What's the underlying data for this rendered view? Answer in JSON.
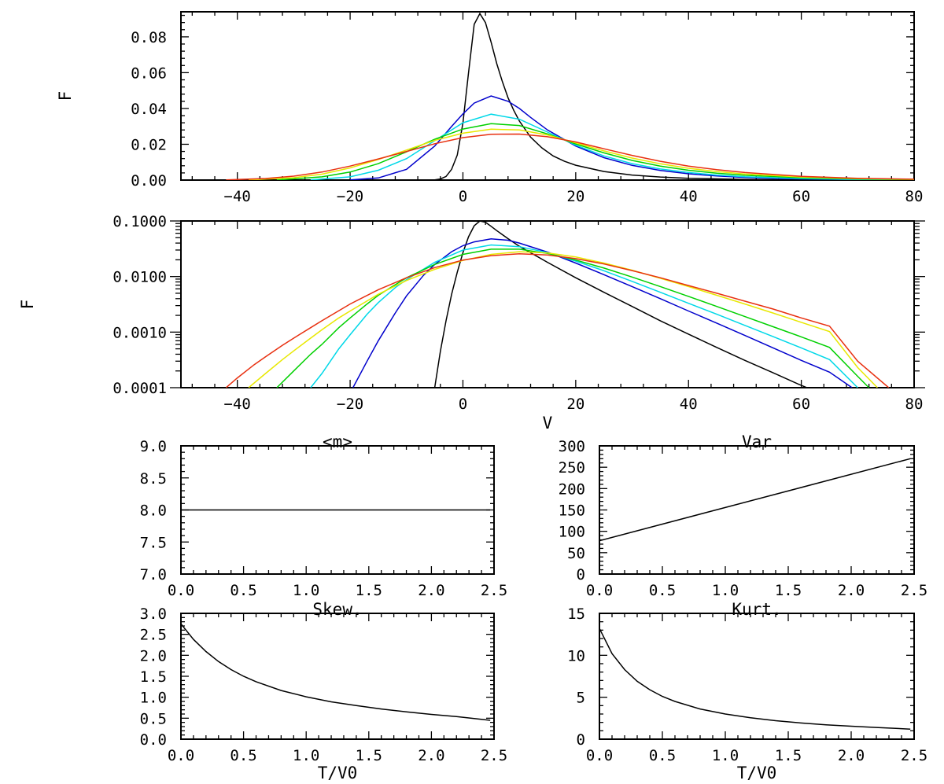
{
  "chart_data": [
    {
      "id": "top",
      "type": "line",
      "ylabel": "F",
      "xlabel": "",
      "xlim": [
        -50,
        80
      ],
      "ylim": [
        0,
        0.094
      ],
      "xticks": [
        -40,
        -20,
        0,
        20,
        40,
        60,
        80
      ],
      "xtick_labels": [
        "−40",
        "−20",
        "0",
        "20",
        "40",
        "60",
        "80"
      ],
      "yticks": [
        0,
        0.02,
        0.04,
        0.06,
        0.08
      ],
      "ytick_labels": [
        "0.00",
        "0.02",
        "0.04",
        "0.06",
        "0.08"
      ],
      "log_y": false,
      "series": [
        {
          "color": "#000000",
          "x": [
            -6,
            -5,
            -4,
            -3,
            -2,
            -1,
            0,
            1,
            2,
            3,
            4,
            5,
            6,
            7,
            8,
            9,
            10,
            12,
            14,
            16,
            18,
            20,
            25,
            30,
            35,
            40,
            50,
            60,
            70,
            80
          ],
          "y": [
            0,
            0.0001,
            0.0006,
            0.002,
            0.006,
            0.014,
            0.032,
            0.06,
            0.087,
            0.093,
            0.088,
            0.077,
            0.065,
            0.055,
            0.046,
            0.039,
            0.033,
            0.024,
            0.018,
            0.0135,
            0.0105,
            0.0083,
            0.0048,
            0.0028,
            0.0017,
            0.001,
            0.0004,
            0.00015,
            5e-05,
            2e-05
          ]
        },
        {
          "color": "#0000cc",
          "x": [
            -20,
            -15,
            -10,
            -5,
            -2,
            0,
            2,
            5,
            8,
            10,
            12,
            15,
            20,
            25,
            30,
            35,
            40,
            45,
            50,
            55,
            60,
            70,
            80
          ],
          "y": [
            0.0001,
            0.0012,
            0.006,
            0.019,
            0.03,
            0.037,
            0.043,
            0.047,
            0.044,
            0.04,
            0.035,
            0.028,
            0.019,
            0.0125,
            0.0082,
            0.0054,
            0.0035,
            0.0023,
            0.0015,
            0.001,
            0.00065,
            0.00028,
            0.00012
          ]
        },
        {
          "color": "#00d8e8",
          "x": [
            -27,
            -20,
            -15,
            -10,
            -5,
            0,
            5,
            10,
            15,
            20,
            25,
            30,
            35,
            40,
            45,
            50,
            60,
            70,
            80
          ],
          "y": [
            0.0001,
            0.0018,
            0.0055,
            0.012,
            0.022,
            0.032,
            0.0368,
            0.034,
            0.0268,
            0.0195,
            0.0135,
            0.0092,
            0.0062,
            0.0042,
            0.0028,
            0.0019,
            0.00085,
            0.00037,
            0.00016
          ]
        },
        {
          "color": "#00d000",
          "x": [
            -33,
            -25,
            -20,
            -15,
            -10,
            -5,
            0,
            5,
            10,
            15,
            20,
            25,
            30,
            35,
            40,
            45,
            50,
            60,
            70,
            80
          ],
          "y": [
            0.0001,
            0.0018,
            0.0045,
            0.0092,
            0.0158,
            0.0228,
            0.0285,
            0.0315,
            0.0305,
            0.0258,
            0.0202,
            0.0152,
            0.011,
            0.0078,
            0.0055,
            0.0038,
            0.0027,
            0.0013,
            0.0006,
            0.00028
          ]
        },
        {
          "color": "#e8e800",
          "x": [
            -38,
            -30,
            -25,
            -20,
            -15,
            -10,
            -5,
            0,
            5,
            10,
            15,
            20,
            25,
            30,
            35,
            40,
            45,
            50,
            60,
            70,
            80
          ],
          "y": [
            0.0001,
            0.0013,
            0.0033,
            0.0068,
            0.0115,
            0.0168,
            0.0222,
            0.0262,
            0.0284,
            0.028,
            0.0252,
            0.0208,
            0.0163,
            0.0123,
            0.0091,
            0.0066,
            0.0048,
            0.0034,
            0.0017,
            0.00085,
            0.0004
          ]
        },
        {
          "color": "#e83010",
          "x": [
            -42,
            -35,
            -30,
            -25,
            -20,
            -15,
            -10,
            -5,
            0,
            5,
            10,
            15,
            20,
            25,
            30,
            35,
            40,
            45,
            50,
            60,
            70,
            80
          ],
          "y": [
            0.0001,
            0.0009,
            0.0022,
            0.0045,
            0.0078,
            0.0118,
            0.016,
            0.0203,
            0.0237,
            0.0256,
            0.0257,
            0.0242,
            0.0213,
            0.0175,
            0.0138,
            0.0105,
            0.0078,
            0.0058,
            0.0042,
            0.0021,
            0.001,
            0.0005
          ]
        }
      ]
    },
    {
      "id": "middle",
      "type": "line",
      "ylabel": "F",
      "xlabel": "V",
      "xlim": [
        -50,
        80
      ],
      "ylim": [
        0.0001,
        0.1
      ],
      "log_y": true,
      "xticks": [
        -40,
        -20,
        0,
        20,
        40,
        60,
        80
      ],
      "xtick_labels": [
        "−40",
        "−20",
        "0",
        "20",
        "40",
        "60",
        "80"
      ],
      "yticks": [
        0.0001,
        0.001,
        0.01,
        0.1
      ],
      "ytick_labels": [
        "0.0001",
        "0.0010",
        "0.0100",
        "0.1000"
      ],
      "series": [
        {
          "color": "#000000",
          "x": [
            -5,
            -4,
            -3,
            -2,
            -1,
            0,
            1,
            2,
            3,
            4,
            5,
            6,
            8,
            10,
            15,
            20,
            25,
            30,
            35,
            40,
            45,
            50,
            55,
            60,
            65,
            68
          ],
          "y": [
            0.0001,
            0.00045,
            0.0016,
            0.0048,
            0.012,
            0.027,
            0.052,
            0.082,
            0.1,
            0.095,
            0.08,
            0.067,
            0.048,
            0.035,
            0.018,
            0.0095,
            0.0052,
            0.0029,
            0.0016,
            0.00092,
            0.00053,
            0.00031,
            0.000185,
            0.00011,
            6.8e-05,
            0.0001
          ]
        },
        {
          "color": "#0000cc",
          "x": [
            -19.5,
            -17,
            -15,
            -12,
            -10,
            -7,
            -5,
            -2,
            0,
            2,
            5,
            8,
            10,
            15,
            20,
            25,
            30,
            35,
            40,
            45,
            50,
            55,
            60,
            65,
            69
          ],
          "y": [
            0.0001,
            0.0003,
            0.0007,
            0.0022,
            0.0045,
            0.0105,
            0.0165,
            0.028,
            0.036,
            0.042,
            0.0475,
            0.045,
            0.04,
            0.0275,
            0.0175,
            0.0108,
            0.0066,
            0.004,
            0.0024,
            0.00145,
            0.00087,
            0.00052,
            0.00031,
            0.00019,
            0.0001
          ]
        },
        {
          "color": "#00d8e8",
          "x": [
            -27,
            -25,
            -22,
            -20,
            -17,
            -15,
            -12,
            -10,
            -5,
            0,
            5,
            10,
            15,
            20,
            25,
            30,
            35,
            40,
            45,
            50,
            55,
            60,
            65,
            70
          ],
          "y": [
            0.0001,
            0.00018,
            0.0005,
            0.0009,
            0.0021,
            0.0034,
            0.0063,
            0.0088,
            0.018,
            0.03,
            0.037,
            0.0345,
            0.027,
            0.019,
            0.0127,
            0.0082,
            0.0052,
            0.0033,
            0.0021,
            0.00132,
            0.00083,
            0.00052,
            0.00032,
            0.0001
          ]
        },
        {
          "color": "#00d000",
          "x": [
            -33,
            -30,
            -27,
            -25,
            -22,
            -20,
            -17,
            -15,
            -10,
            -5,
            0,
            5,
            10,
            15,
            20,
            25,
            30,
            35,
            40,
            45,
            50,
            55,
            60,
            65,
            70,
            72
          ],
          "y": [
            0.0001,
            0.0002,
            0.0004,
            0.0006,
            0.0012,
            0.0018,
            0.0032,
            0.0046,
            0.0095,
            0.0165,
            0.025,
            0.031,
            0.031,
            0.026,
            0.0198,
            0.0142,
            0.0098,
            0.0066,
            0.0044,
            0.0029,
            0.0019,
            0.00125,
            0.00082,
            0.00053,
            0.00016,
            0.0001
          ]
        },
        {
          "color": "#e8e800",
          "x": [
            -38,
            -35,
            -32,
            -30,
            -27,
            -25,
            -22,
            -20,
            -15,
            -10,
            -5,
            0,
            5,
            10,
            15,
            20,
            25,
            30,
            35,
            40,
            45,
            50,
            55,
            60,
            65,
            70,
            73.5
          ],
          "y": [
            0.0001,
            0.00018,
            0.00032,
            0.00046,
            0.00078,
            0.0011,
            0.0018,
            0.0024,
            0.0048,
            0.0085,
            0.0135,
            0.0195,
            0.025,
            0.028,
            0.0266,
            0.0225,
            0.0175,
            0.013,
            0.0093,
            0.0066,
            0.0046,
            0.0032,
            0.0022,
            0.0015,
            0.00102,
            0.00023,
            0.0001
          ]
        },
        {
          "color": "#e83010",
          "x": [
            -42,
            -40,
            -37,
            -35,
            -32,
            -30,
            -27,
            -25,
            -20,
            -15,
            -10,
            -5,
            0,
            5,
            10,
            15,
            20,
            25,
            30,
            35,
            40,
            45,
            50,
            55,
            60,
            65,
            70,
            75.5
          ],
          "y": [
            0.0001,
            0.00015,
            0.00026,
            0.00036,
            0.00058,
            0.00078,
            0.0012,
            0.0016,
            0.0032,
            0.0058,
            0.0095,
            0.0145,
            0.0198,
            0.0238,
            0.0256,
            0.0245,
            0.021,
            0.0168,
            0.0128,
            0.0095,
            0.0069,
            0.005,
            0.0036,
            0.0026,
            0.0018,
            0.00128,
            0.0003,
            0.0001
          ]
        }
      ]
    },
    {
      "id": "mean",
      "type": "line",
      "title": "<m>",
      "xlim": [
        0,
        2.5
      ],
      "ylim": [
        7.0,
        9.0
      ],
      "xticks": [
        0,
        0.5,
        1.0,
        1.5,
        2.0,
        2.5
      ],
      "xtick_labels": [
        "0.0",
        "0.5",
        "1.0",
        "1.5",
        "2.0",
        "2.5"
      ],
      "yticks": [
        7.0,
        7.5,
        8.0,
        8.5,
        9.0
      ],
      "ytick_labels": [
        "7.0",
        "7.5",
        "8.0",
        "8.5",
        "9.0"
      ],
      "series": [
        {
          "color": "#000000",
          "x": [
            0,
            2.47
          ],
          "y": [
            8.0,
            8.0
          ]
        }
      ]
    },
    {
      "id": "var",
      "type": "line",
      "title": "Var",
      "xlim": [
        0,
        2.5
      ],
      "ylim": [
        0,
        300
      ],
      "xticks": [
        0,
        0.5,
        1.0,
        1.5,
        2.0,
        2.5
      ],
      "xtick_labels": [
        "0.0",
        "0.5",
        "1.0",
        "1.5",
        "2.0",
        "2.5"
      ],
      "yticks": [
        0,
        50,
        100,
        150,
        200,
        250,
        300
      ],
      "ytick_labels": [
        "0",
        "50",
        "100",
        "150",
        "200",
        "250",
        "300"
      ],
      "series": [
        {
          "color": "#000000",
          "x": [
            0,
            2.47
          ],
          "y": [
            78,
            270
          ]
        }
      ]
    },
    {
      "id": "skew",
      "type": "line",
      "title": "Skew.",
      "xlabel": "T/V0",
      "xlim": [
        0,
        2.5
      ],
      "ylim": [
        0,
        3.0
      ],
      "xticks": [
        0,
        0.5,
        1.0,
        1.5,
        2.0,
        2.5
      ],
      "xtick_labels": [
        "0.0",
        "0.5",
        "1.0",
        "1.5",
        "2.0",
        "2.5"
      ],
      "yticks": [
        0,
        0.5,
        1.0,
        1.5,
        2.0,
        2.5,
        3.0
      ],
      "ytick_labels": [
        "0.0",
        "0.5",
        "1.0",
        "1.5",
        "2.0",
        "2.5",
        "3.0"
      ],
      "series": [
        {
          "color": "#000000",
          "x": [
            0,
            0.1,
            0.2,
            0.3,
            0.4,
            0.5,
            0.6,
            0.8,
            1.0,
            1.2,
            1.4,
            1.6,
            1.8,
            2.0,
            2.2,
            2.47
          ],
          "y": [
            2.75,
            2.38,
            2.09,
            1.85,
            1.66,
            1.5,
            1.37,
            1.16,
            1.01,
            0.89,
            0.8,
            0.72,
            0.65,
            0.59,
            0.54,
            0.45
          ]
        }
      ]
    },
    {
      "id": "kurt",
      "type": "line",
      "title": "Kurt.",
      "xlabel": "T/V0",
      "xlim": [
        0,
        2.5
      ],
      "ylim": [
        0,
        15
      ],
      "xticks": [
        0,
        0.5,
        1.0,
        1.5,
        2.0,
        2.5
      ],
      "xtick_labels": [
        "0.0",
        "0.5",
        "1.0",
        "1.5",
        "2.0",
        "2.5"
      ],
      "yticks": [
        0,
        5,
        10,
        15
      ],
      "ytick_labels": [
        "0",
        "5",
        "10",
        "15"
      ],
      "series": [
        {
          "color": "#000000",
          "x": [
            0,
            0.1,
            0.2,
            0.3,
            0.4,
            0.5,
            0.6,
            0.8,
            1.0,
            1.2,
            1.4,
            1.6,
            1.8,
            2.0,
            2.2,
            2.47
          ],
          "y": [
            13.2,
            10.2,
            8.3,
            6.9,
            5.9,
            5.1,
            4.5,
            3.6,
            3.0,
            2.55,
            2.2,
            1.93,
            1.72,
            1.55,
            1.4,
            1.2
          ]
        }
      ]
    }
  ]
}
